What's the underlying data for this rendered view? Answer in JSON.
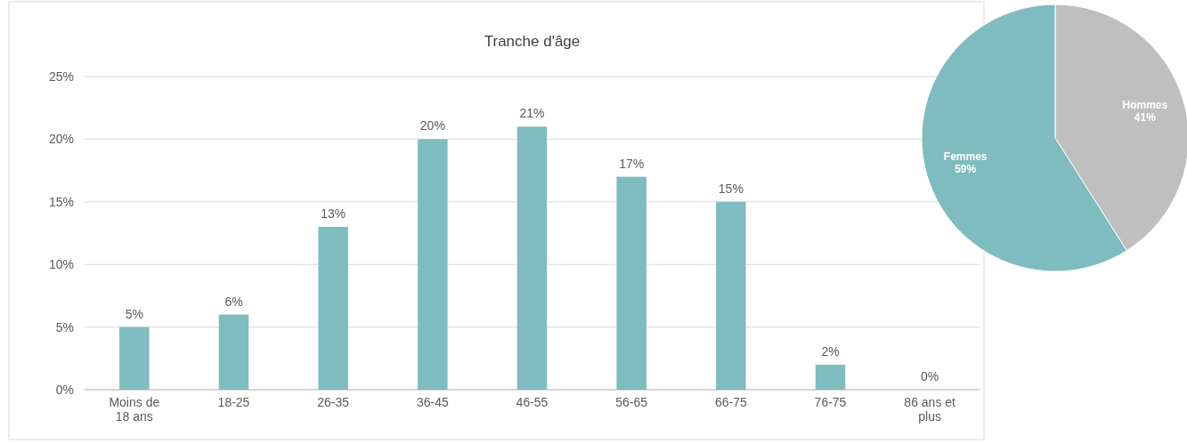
{
  "chart_data": [
    {
      "type": "bar",
      "title": "Tranche d'âge",
      "categories": [
        "Moins de 18 ans",
        "18-25",
        "26-35",
        "36-45",
        "46-55",
        "56-65",
        "66-75",
        "76-75",
        "86 ans et plus"
      ],
      "values": [
        5,
        6,
        13,
        20,
        21,
        17,
        15,
        2,
        0
      ],
      "value_labels": [
        "5%",
        "6%",
        "13%",
        "20%",
        "21%",
        "17%",
        "15%",
        "2%",
        "0%"
      ],
      "color": "#7fbcbf",
      "ylim": [
        0,
        25
      ],
      "yticks": [
        {
          "value": 0,
          "label": "0%"
        },
        {
          "value": 5,
          "label": "5%"
        },
        {
          "value": 10,
          "label": "10%"
        },
        {
          "value": 15,
          "label": "15%"
        },
        {
          "value": 20,
          "label": "20%"
        },
        {
          "value": 25,
          "label": "25%"
        }
      ],
      "grid": "y"
    },
    {
      "type": "pie",
      "categories": [
        "Hommes",
        "Femmes"
      ],
      "values": [
        41,
        59
      ],
      "value_labels": [
        "41%",
        "59%"
      ],
      "colors": [
        "#bfbfbf",
        "#7fbcbf"
      ]
    }
  ]
}
